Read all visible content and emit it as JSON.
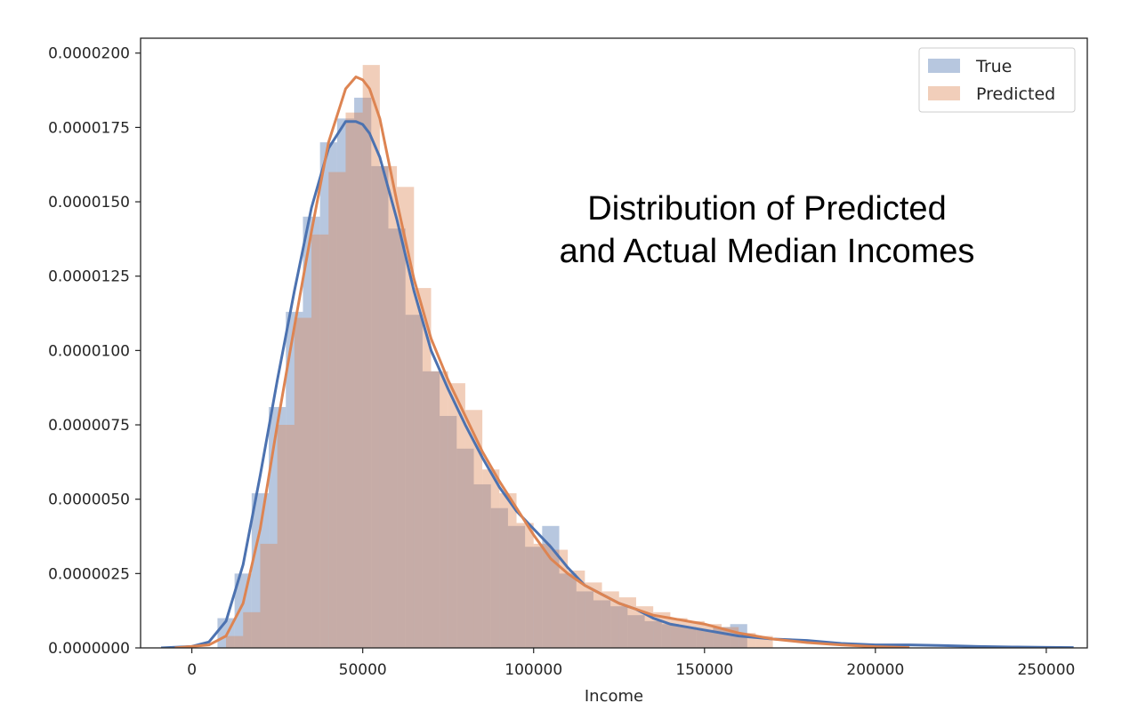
{
  "chart_data": {
    "type": "histogram",
    "title": "",
    "annotation": [
      "Distribution of Predicted",
      "and Actual Median Incomes"
    ],
    "xlabel": "Income",
    "ylabel": "",
    "xlim": [
      -15000,
      262000
    ],
    "ylim": [
      0,
      2.05e-05
    ],
    "xticks": [
      0,
      50000,
      100000,
      150000,
      200000,
      250000
    ],
    "xtick_labels": [
      "0",
      "50000",
      "100000",
      "150000",
      "200000",
      "250000"
    ],
    "yticks": [
      0,
      2.5e-06,
      5e-06,
      7.5e-06,
      1e-05,
      1.25e-05,
      1.5e-05,
      1.75e-05,
      2e-05
    ],
    "ytick_labels": [
      "0.0000000",
      "0.0000025",
      "0.0000050",
      "0.0000075",
      "0.0000100",
      "0.0000125",
      "0.0000150",
      "0.0000175",
      "0.0000200"
    ],
    "grid": false,
    "legend_position": "top-right",
    "series": [
      {
        "name": "True",
        "color": "#4c72b0",
        "hist": {
          "edges": [
            7500,
            12500,
            17500,
            22500,
            27500,
            32500,
            37500,
            42500,
            47500,
            52500,
            57500,
            62500,
            67500,
            72500,
            77500,
            82500,
            87500,
            92500,
            97500,
            102500,
            107500,
            112500,
            117500,
            122500,
            127500,
            132500,
            137500,
            142500,
            147500,
            152500,
            157500,
            162500
          ],
          "values": [
            1e-06,
            2.5e-06,
            5.2e-06,
            8.1e-06,
            1.13e-05,
            1.45e-05,
            1.7e-05,
            1.78e-05,
            1.85e-05,
            1.62e-05,
            1.41e-05,
            1.12e-05,
            9.3e-06,
            7.8e-06,
            6.7e-06,
            5.5e-06,
            4.7e-06,
            4.1e-06,
            3.4e-06,
            4.1e-06,
            2.5e-06,
            1.9e-06,
            1.6e-06,
            1.4e-06,
            1.1e-06,
            9e-07,
            8e-07,
            7e-07,
            6e-07,
            7e-07,
            8e-07
          ]
        },
        "kde": {
          "x": [
            -9000,
            0,
            5000,
            10000,
            15000,
            20000,
            25000,
            30000,
            35000,
            40000,
            45000,
            48000,
            50000,
            52000,
            55000,
            60000,
            65000,
            70000,
            75000,
            80000,
            85000,
            90000,
            95000,
            100000,
            105000,
            110000,
            115000,
            120000,
            125000,
            130000,
            135000,
            140000,
            145000,
            150000,
            160000,
            170000,
            180000,
            190000,
            200000,
            210000,
            220000,
            230000,
            240000,
            250000,
            258000
          ],
          "y": [
            0.0,
            5e-08,
            2e-07,
            9e-07,
            2.8e-06,
            5.8e-06,
            9e-06,
            1.2e-05,
            1.48e-05,
            1.68e-05,
            1.77e-05,
            1.77e-05,
            1.76e-05,
            1.73e-05,
            1.65e-05,
            1.44e-05,
            1.2e-05,
            1e-05,
            8.7e-06,
            7.5e-06,
            6.4e-06,
            5.4e-06,
            4.6e-06,
            4e-06,
            3.4e-06,
            2.7e-06,
            2.1e-06,
            1.8e-06,
            1.5e-06,
            1.3e-06,
            1e-06,
            8e-07,
            7e-07,
            6e-07,
            4e-07,
            3e-07,
            2.5e-07,
            1.5e-07,
            1e-07,
            1e-07,
            8e-08,
            5e-08,
            3e-08,
            2e-08,
            1e-08
          ]
        }
      },
      {
        "name": "Predicted",
        "color": "#dd8452",
        "hist": {
          "edges": [
            10000,
            15000,
            20000,
            25000,
            30000,
            35000,
            40000,
            45000,
            50000,
            55000,
            60000,
            65000,
            70000,
            75000,
            80000,
            85000,
            90000,
            95000,
            100000,
            105000,
            110000,
            115000,
            120000,
            125000,
            130000,
            135000,
            140000,
            145000,
            150000,
            155000,
            160000,
            165000,
            170000
          ],
          "values": [
            4e-07,
            1.2e-06,
            3.5e-06,
            7.5e-06,
            1.11e-05,
            1.39e-05,
            1.6e-05,
            1.8e-05,
            1.96e-05,
            1.62e-05,
            1.55e-05,
            1.21e-05,
            9.3e-06,
            8.9e-06,
            8e-06,
            6e-06,
            5.2e-06,
            4.2e-06,
            3.5e-06,
            3.3e-06,
            2.6e-06,
            2.2e-06,
            1.9e-06,
            1.7e-06,
            1.4e-06,
            1.2e-06,
            1e-06,
            9e-07,
            8e-07,
            7e-07,
            5e-07,
            4e-07
          ]
        },
        "kde": {
          "x": [
            -5000,
            0,
            5000,
            10000,
            15000,
            20000,
            25000,
            30000,
            35000,
            40000,
            45000,
            48000,
            50000,
            52000,
            55000,
            60000,
            65000,
            70000,
            75000,
            80000,
            85000,
            90000,
            95000,
            100000,
            105000,
            110000,
            115000,
            120000,
            125000,
            130000,
            135000,
            140000,
            145000,
            150000,
            160000,
            170000,
            180000,
            190000,
            200000,
            210000
          ],
          "y": [
            0.0,
            5e-08,
            1e-07,
            4e-07,
            1.5e-06,
            4e-06,
            7.5e-06,
            1.08e-05,
            1.4e-05,
            1.7e-05,
            1.88e-05,
            1.92e-05,
            1.91e-05,
            1.88e-05,
            1.78e-05,
            1.5e-05,
            1.24e-05,
            1.04e-05,
            9e-06,
            7.8e-06,
            6.6e-06,
            5.6e-06,
            4.7e-06,
            3.8e-06,
            3e-06,
            2.5e-06,
            2.1e-06,
            1.8e-06,
            1.5e-06,
            1.3e-06,
            1.1e-06,
            1e-06,
            9e-07,
            8e-07,
            5e-07,
            3e-07,
            1.8e-07,
            1e-07,
            4e-08,
            1e-08
          ]
        }
      }
    ]
  }
}
